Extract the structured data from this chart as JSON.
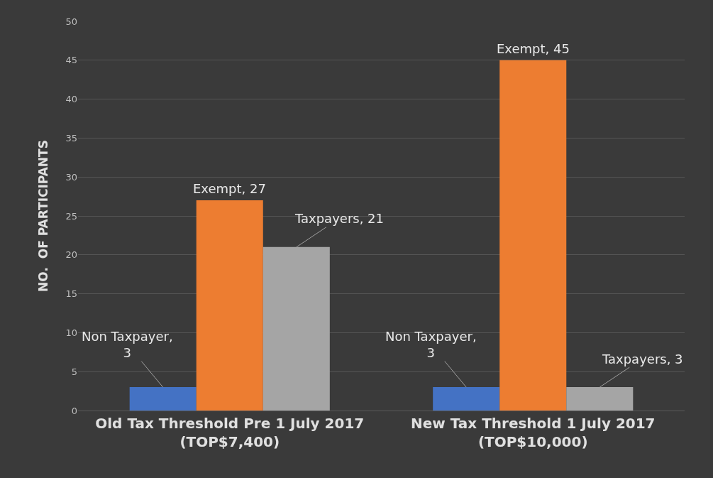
{
  "chart_data": {
    "type": "bar",
    "ylabel": "NO.  OF PARTICIPANTS",
    "categories": [
      "Old Tax Threshold Pre 1 July 2017\n(TOP$7,400)",
      "New Tax Threshold 1 July 2017\n(TOP$10,000)"
    ],
    "series": [
      {
        "color": "#4472c4",
        "values": [
          3,
          3
        ],
        "value_labels": [
          "Non Taxpayer,\n3",
          "Non Taxpayer,\n3"
        ]
      },
      {
        "color": "#ed7d31",
        "values": [
          27,
          45
        ],
        "value_labels": [
          "Exempt, 27",
          "Exempt, 45"
        ]
      },
      {
        "color": "#a5a5a5",
        "values": [
          21,
          3
        ],
        "value_labels": [
          "Taxpayers, 21",
          "Taxpayers, 3"
        ]
      }
    ],
    "ylim": [
      0,
      50
    ],
    "yticks": [
      0,
      5,
      10,
      15,
      20,
      25,
      30,
      35,
      40,
      45,
      50
    ],
    "grid": "y",
    "legend": false
  }
}
